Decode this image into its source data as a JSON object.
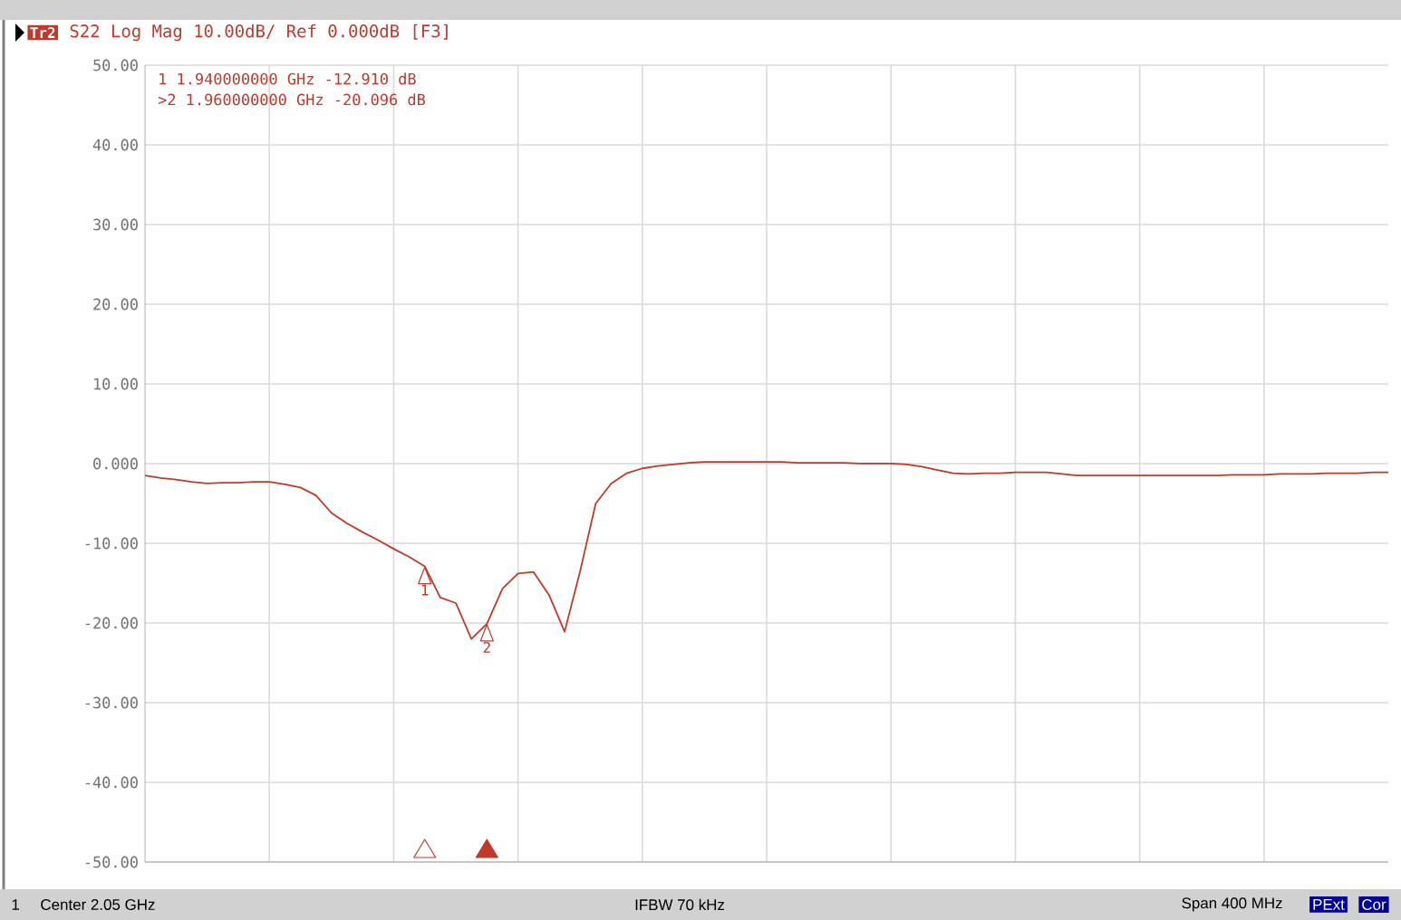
{
  "chart_data": {
    "type": "line",
    "title": "S22 Log Mag 10.00dB/ Ref 0.000dB [F3]",
    "categories": [
      null,
      null,
      null,
      null,
      null,
      null,
      null,
      null,
      null,
      null,
      null,
      null,
      null,
      null,
      null,
      null,
      null,
      null,
      null,
      null,
      null,
      null,
      null,
      null,
      null,
      null,
      null,
      null,
      null,
      null,
      null,
      null,
      null,
      null,
      null,
      null,
      null,
      null,
      null,
      null,
      null,
      null,
      null,
      null,
      null,
      null,
      null,
      null,
      null,
      null,
      null,
      null,
      null,
      null,
      null,
      null,
      null,
      null,
      null,
      null,
      null,
      null,
      null,
      null,
      null,
      null,
      null,
      null,
      null,
      null,
      null,
      null,
      null,
      null,
      null,
      null,
      null,
      null,
      null,
      null,
      null
    ],
    "series": [
      {
        "color": "#c0392b",
        "values": [
          -1.5,
          -1.8,
          -2.0,
          -2.3,
          -2.5,
          -2.4,
          -2.4,
          -2.3,
          -2.3,
          -2.6,
          -3.0,
          -4.0,
          -6.2,
          -7.5,
          -8.6,
          -9.6,
          -10.7,
          -11.7,
          -12.9,
          -16.8,
          -17.5,
          -22.0,
          -20.1,
          -15.7,
          -13.8,
          -13.6,
          -16.5,
          -21.1,
          -13.5,
          -5.0,
          -2.5,
          -1.2,
          -0.6,
          -0.3,
          -0.1,
          0.1,
          0.2,
          0.2,
          0.2,
          0.2,
          0.2,
          0.2,
          0.1,
          0.1,
          0.1,
          0.1,
          0.0,
          0.0,
          0.0,
          -0.1,
          -0.4,
          -0.8,
          -1.2,
          -1.3,
          -1.2,
          -1.2,
          -1.1,
          -1.1,
          -1.1,
          -1.3,
          -1.5,
          -1.5,
          -1.5,
          -1.5,
          -1.5,
          -1.5,
          -1.5,
          -1.5,
          -1.5,
          -1.5,
          -1.4,
          -1.4,
          -1.4,
          -1.3,
          -1.3,
          -1.3,
          -1.2,
          -1.2,
          -1.2,
          -1.1,
          -1.1
        ]
      }
    ],
    "ylim": [
      -50,
      50
    ],
    "yticks": [
      {
        "value": -50,
        "label": "-50.00"
      },
      {
        "value": -40,
        "label": "-40.00"
      },
      {
        "value": -30,
        "label": "-30.00"
      },
      {
        "value": -20,
        "label": "-20.00"
      },
      {
        "value": -10,
        "label": "-10.00"
      },
      {
        "value": 0,
        "label": "0.000"
      },
      {
        "value": 10,
        "label": "10.00"
      },
      {
        "value": 20,
        "label": "20.00"
      },
      {
        "value": 30,
        "label": "30.00"
      },
      {
        "value": 40,
        "label": "40.00"
      },
      {
        "value": 50,
        "label": "50.00"
      }
    ],
    "grid": true,
    "marker": "none",
    "line_style": "solid",
    "tick_labels": "y",
    "annotations": [
      "Tr2",
      "1  1.940000000 GHz -12.910 dB",
      ">2  1.960000000 GHz -20.096 dB",
      {
        "text": "1",
        "y": -12.91
      },
      {
        "text": "2",
        "y": -20.096
      },
      "1",
      "Center 2.05 GHz",
      "IFBW 70 kHz",
      "Span 400 MHz",
      "PExt",
      "Cor"
    ]
  }
}
